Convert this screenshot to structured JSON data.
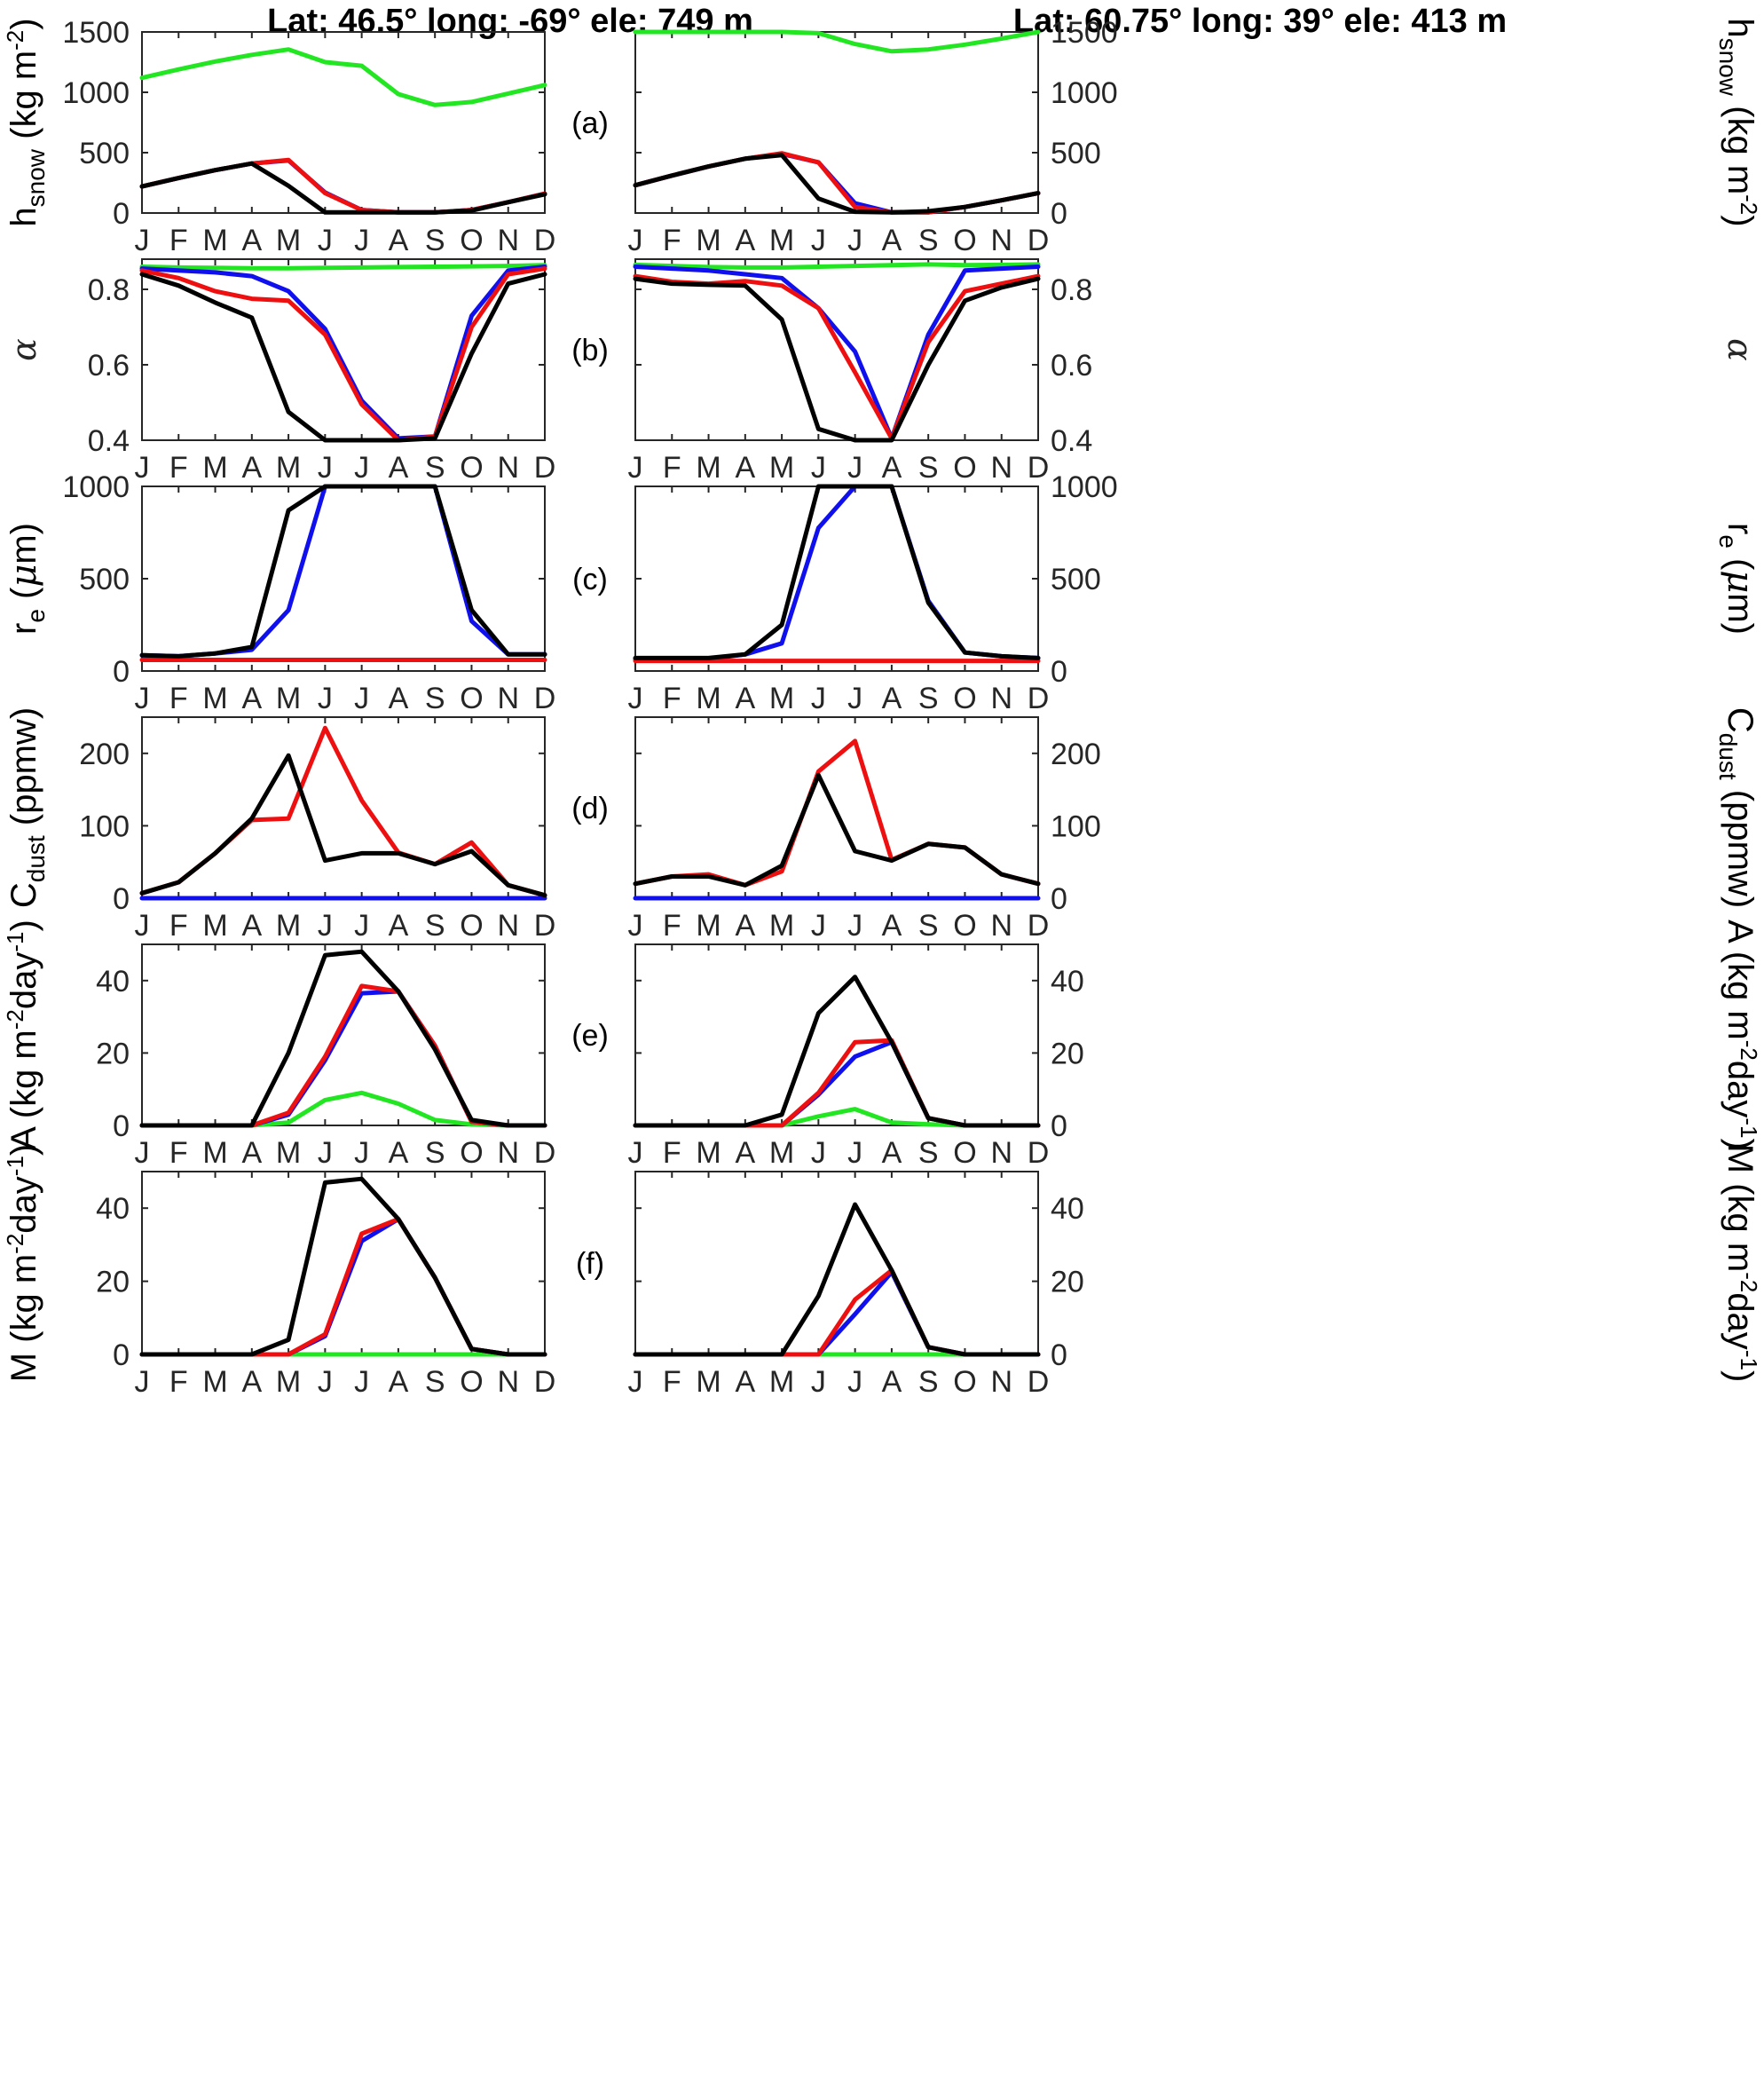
{
  "figure": {
    "titles": [
      "Lat: 46.5° long: -69° ele: 749 m",
      "Lat: 60.75° long: 39° ele: 413 m"
    ],
    "months": [
      "J",
      "F",
      "M",
      "A",
      "M",
      "J",
      "J",
      "A",
      "S",
      "O",
      "N",
      "D"
    ],
    "colors": {
      "green": "#22e622",
      "blue": "#1010ee",
      "red": "#ee1010",
      "black": "#000000"
    }
  },
  "chart_data": [
    {
      "panel": "(a)",
      "type": "line",
      "ylabel_main": "h",
      "ylabel_sub": "snow",
      "ylabel_tail": " (kg m",
      "ylabel_sup": "-2",
      "ylabel_end": ")",
      "ylim": [
        0,
        1500
      ],
      "yticks": [
        0,
        500,
        1000,
        1500
      ],
      "left": [
        {
          "color": "green",
          "values": [
            1120,
            1190,
            1255,
            1310,
            1355,
            1250,
            1220,
            985,
            895,
            920,
            990,
            1060
          ]
        },
        {
          "color": "blue",
          "values": [
            220,
            290,
            355,
            410,
            435,
            170,
            25,
            5,
            5,
            25,
            90,
            160
          ]
        },
        {
          "color": "red",
          "values": [
            220,
            290,
            355,
            410,
            440,
            165,
            25,
            5,
            5,
            25,
            90,
            160
          ]
        },
        {
          "color": "black",
          "values": [
            220,
            290,
            355,
            410,
            225,
            5,
            5,
            5,
            5,
            20,
            90,
            155
          ]
        }
      ],
      "right": [
        {
          "color": "green",
          "values": [
            1500,
            1500,
            1500,
            1500,
            1500,
            1490,
            1400,
            1340,
            1355,
            1395,
            1445,
            1500
          ]
        },
        {
          "color": "blue",
          "values": [
            230,
            310,
            385,
            450,
            490,
            420,
            80,
            5,
            5,
            50,
            105,
            165
          ]
        },
        {
          "color": "red",
          "values": [
            230,
            310,
            385,
            450,
            495,
            420,
            50,
            5,
            5,
            50,
            105,
            165
          ]
        },
        {
          "color": "black",
          "values": [
            230,
            310,
            385,
            450,
            480,
            120,
            10,
            5,
            15,
            50,
            105,
            165
          ]
        }
      ]
    },
    {
      "panel": "(b)",
      "type": "line",
      "ylabel_symbol": "α",
      "ylim": [
        0.4,
        0.88
      ],
      "yticks": [
        0.4,
        0.6,
        0.8
      ],
      "left": [
        {
          "color": "green",
          "values": [
            0.86,
            0.858,
            0.857,
            0.856,
            0.856,
            0.857,
            0.858,
            0.859,
            0.86,
            0.861,
            0.862,
            0.864
          ]
        },
        {
          "color": "blue",
          "values": [
            0.855,
            0.85,
            0.845,
            0.835,
            0.795,
            0.695,
            0.505,
            0.405,
            0.41,
            0.73,
            0.85,
            0.86
          ]
        },
        {
          "color": "red",
          "values": [
            0.85,
            0.83,
            0.795,
            0.775,
            0.77,
            0.68,
            0.495,
            0.4,
            0.41,
            0.7,
            0.84,
            0.855
          ]
        },
        {
          "color": "black",
          "values": [
            0.84,
            0.81,
            0.765,
            0.725,
            0.475,
            0.4,
            0.4,
            0.4,
            0.405,
            0.63,
            0.815,
            0.84
          ]
        }
      ],
      "right": [
        {
          "color": "green",
          "values": [
            0.865,
            0.862,
            0.859,
            0.858,
            0.858,
            0.86,
            0.862,
            0.864,
            0.866,
            0.864,
            0.865,
            0.866
          ]
        },
        {
          "color": "blue",
          "values": [
            0.86,
            0.855,
            0.85,
            0.84,
            0.83,
            0.75,
            0.635,
            0.405,
            0.68,
            0.85,
            0.855,
            0.86
          ]
        },
        {
          "color": "red",
          "values": [
            0.835,
            0.82,
            0.815,
            0.822,
            0.81,
            0.75,
            0.58,
            0.405,
            0.66,
            0.795,
            0.815,
            0.835
          ]
        },
        {
          "color": "black",
          "values": [
            0.828,
            0.815,
            0.812,
            0.81,
            0.72,
            0.43,
            0.4,
            0.4,
            0.6,
            0.77,
            0.805,
            0.828
          ]
        }
      ]
    },
    {
      "panel": "(c)",
      "type": "line",
      "ylabel_main": "r",
      "ylabel_sub": "e",
      "ylabel_tail": " (",
      "ylabel_mu": "μ",
      "ylabel_end": "m)",
      "ylim": [
        0,
        1000
      ],
      "yticks": [
        0,
        500,
        1000
      ],
      "left": [
        {
          "color": "blue",
          "values": [
            85,
            80,
            95,
            115,
            330,
            1000,
            1000,
            1000,
            1000,
            270,
            90,
            90
          ]
        },
        {
          "color": "red",
          "values": [
            60,
            60,
            60,
            60,
            60,
            60,
            60,
            60,
            60,
            60,
            60,
            60
          ]
        },
        {
          "color": "black",
          "values": [
            85,
            80,
            95,
            130,
            870,
            1000,
            1000,
            1000,
            1000,
            330,
            90,
            90
          ]
        }
      ],
      "right": [
        {
          "color": "blue",
          "values": [
            65,
            65,
            65,
            90,
            150,
            775,
            1000,
            1000,
            380,
            100,
            80,
            70
          ]
        },
        {
          "color": "red",
          "values": [
            55,
            55,
            55,
            55,
            55,
            55,
            55,
            55,
            55,
            55,
            55,
            55
          ]
        },
        {
          "color": "black",
          "values": [
            70,
            70,
            70,
            90,
            250,
            1000,
            1000,
            1000,
            370,
            100,
            80,
            70
          ]
        }
      ]
    },
    {
      "panel": "(d)",
      "type": "line",
      "ylabel_main": "C",
      "ylabel_sub": "dust",
      "ylabel_tail": " (ppmw)",
      "ylim": [
        0,
        250
      ],
      "yticks": [
        0,
        100,
        200
      ],
      "left": [
        {
          "color": "blue",
          "values": [
            0,
            0,
            0,
            0,
            0,
            0,
            0,
            0,
            0,
            0,
            0,
            0
          ]
        },
        {
          "color": "red",
          "values": [
            7,
            22,
            62,
            108,
            110,
            235,
            135,
            63,
            47,
            77,
            18,
            4
          ]
        },
        {
          "color": "black",
          "values": [
            7,
            22,
            62,
            110,
            197,
            52,
            62,
            62,
            47,
            65,
            18,
            4
          ]
        }
      ],
      "right": [
        {
          "color": "blue",
          "values": [
            0,
            0,
            0,
            0,
            0,
            0,
            0,
            0,
            0,
            0,
            0,
            0
          ]
        },
        {
          "color": "red",
          "values": [
            20,
            30,
            33,
            18,
            37,
            175,
            217,
            53,
            75,
            70,
            33,
            20
          ]
        },
        {
          "color": "black",
          "values": [
            20,
            30,
            30,
            18,
            45,
            170,
            65,
            52,
            75,
            70,
            33,
            20
          ]
        }
      ]
    },
    {
      "panel": "(e)",
      "type": "line",
      "ylabel_main": "A",
      "ylabel_tail": " (kg m",
      "ylabel_sup": "-2",
      "ylabel_mid": "day",
      "ylabel_sup2": "-1",
      "ylabel_end": ")",
      "ylim": [
        0,
        50
      ],
      "yticks": [
        0,
        20,
        40
      ],
      "left": [
        {
          "color": "green",
          "values": [
            0,
            0,
            0,
            0,
            0.8,
            7,
            9,
            6,
            1.5,
            0.3,
            0,
            0
          ]
        },
        {
          "color": "blue",
          "values": [
            0,
            0,
            0,
            0,
            3,
            18,
            36.5,
            37,
            22,
            1,
            0,
            0
          ]
        },
        {
          "color": "red",
          "values": [
            0,
            0,
            0,
            0,
            3.5,
            19,
            38.5,
            37,
            22,
            1,
            0,
            0
          ]
        },
        {
          "color": "black",
          "values": [
            0,
            0,
            0,
            0,
            20,
            47,
            48,
            37,
            21,
            1.5,
            0,
            0
          ]
        }
      ],
      "right": [
        {
          "color": "green",
          "values": [
            0,
            0,
            0,
            0,
            0,
            2.5,
            4.5,
            0.8,
            0.3,
            0,
            0,
            0
          ]
        },
        {
          "color": "blue",
          "values": [
            0,
            0,
            0,
            0,
            0,
            8.5,
            19,
            23,
            2,
            0,
            0,
            0
          ]
        },
        {
          "color": "red",
          "values": [
            0,
            0,
            0,
            0,
            0,
            9,
            23,
            23.5,
            2,
            0,
            0,
            0
          ]
        },
        {
          "color": "black",
          "values": [
            0,
            0,
            0,
            0,
            3,
            31,
            41,
            23,
            2,
            0,
            0,
            0
          ]
        }
      ]
    },
    {
      "panel": "(f)",
      "type": "line",
      "ylabel_main": "M",
      "ylabel_tail": " (kg m",
      "ylabel_sup": "-2",
      "ylabel_mid": "day",
      "ylabel_sup2": "-1",
      "ylabel_end": ")",
      "ylim": [
        0,
        50
      ],
      "yticks": [
        0,
        20,
        40
      ],
      "left": [
        {
          "color": "green",
          "values": [
            0,
            0,
            0,
            0,
            0,
            0,
            0,
            0,
            0,
            0,
            0,
            0
          ]
        },
        {
          "color": "blue",
          "values": [
            0,
            0,
            0,
            0,
            0,
            5,
            31,
            37,
            21,
            1.5,
            0,
            0
          ]
        },
        {
          "color": "red",
          "values": [
            0,
            0,
            0,
            0,
            0,
            5.5,
            33,
            37,
            21,
            1.5,
            0,
            0
          ]
        },
        {
          "color": "black",
          "values": [
            0,
            0,
            0,
            0,
            4,
            47,
            48,
            37,
            21,
            1.5,
            0,
            0
          ]
        }
      ],
      "right": [
        {
          "color": "green",
          "values": [
            0,
            0,
            0,
            0,
            0,
            0,
            0,
            0,
            0,
            0,
            0,
            0
          ]
        },
        {
          "color": "blue",
          "values": [
            0,
            0,
            0,
            0,
            0,
            0,
            11,
            22.5,
            2,
            0,
            0,
            0
          ]
        },
        {
          "color": "red",
          "values": [
            0,
            0,
            0,
            0,
            0,
            0,
            15,
            23,
            2,
            0,
            0,
            0
          ]
        },
        {
          "color": "black",
          "values": [
            0,
            0,
            0,
            0,
            0,
            16,
            41,
            23,
            2,
            0,
            0,
            0
          ]
        }
      ]
    }
  ]
}
